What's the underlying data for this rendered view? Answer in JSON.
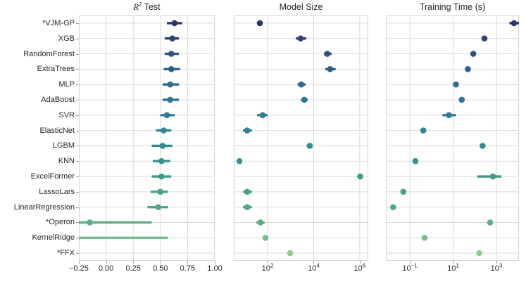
{
  "figure": {
    "background": "#ffffff",
    "grid_color": "#dadada",
    "spine_color": "#d4d4d4",
    "tick_color": "#9a9a9a",
    "text_color": "#262626"
  },
  "models": [
    {
      "label": "*VJM-GP",
      "color": "#2b3470"
    },
    {
      "label": "XGB",
      "color": "#2c427c"
    },
    {
      "label": "RandomForest",
      "color": "#2c5185"
    },
    {
      "label": "ExtraTrees",
      "color": "#2d5f8d"
    },
    {
      "label": "MLP",
      "color": "#2e6a92"
    },
    {
      "label": "AdaBoost",
      "color": "#2e7295"
    },
    {
      "label": "SVR",
      "color": "#2c7d97"
    },
    {
      "label": "ElasticNet",
      "color": "#2b8795"
    },
    {
      "label": "LGBM",
      "color": "#2c8c90"
    },
    {
      "label": "KNN",
      "color": "#33948d"
    },
    {
      "label": "ExcelFormer",
      "color": "#3c9c8b"
    },
    {
      "label": "LassoLars",
      "color": "#45a389"
    },
    {
      "label": "LinearRegression",
      "color": "#4ea988"
    },
    {
      "label": "*Operon",
      "color": "#57b087"
    },
    {
      "label": "KernelRidge",
      "color": "#73bf8b"
    },
    {
      "label": "*FFX",
      "color": "#90cb8d"
    }
  ],
  "chart_data": [
    {
      "type": "scatter",
      "title": "_R_^{2} Test",
      "scale": "linear",
      "xlim": [
        -0.25,
        1.0
      ],
      "grid": true,
      "ticks": [
        {
          "v": -0.25,
          "label": "−0.25"
        },
        {
          "v": 0.0,
          "label": "0.00"
        },
        {
          "v": 0.25,
          "label": "0.25"
        },
        {
          "v": 0.5,
          "label": "0.50"
        },
        {
          "v": 0.75,
          "label": "0.75"
        },
        {
          "v": 1.0,
          "label": "1.00"
        }
      ],
      "points": [
        {
          "v": 0.63,
          "lo": 0.56,
          "hi": 0.7
        },
        {
          "v": 0.61,
          "lo": 0.54,
          "hi": 0.67
        },
        {
          "v": 0.6,
          "lo": 0.54,
          "hi": 0.67
        },
        {
          "v": 0.6,
          "lo": 0.53,
          "hi": 0.68
        },
        {
          "v": 0.59,
          "lo": 0.52,
          "hi": 0.67
        },
        {
          "v": 0.59,
          "lo": 0.52,
          "hi": 0.67
        },
        {
          "v": 0.56,
          "lo": 0.5,
          "hi": 0.63
        },
        {
          "v": 0.53,
          "lo": 0.46,
          "hi": 0.6
        },
        {
          "v": 0.52,
          "lo": 0.42,
          "hi": 0.61
        },
        {
          "v": 0.51,
          "lo": 0.43,
          "hi": 0.59
        },
        {
          "v": 0.51,
          "lo": 0.42,
          "hi": 0.6
        },
        {
          "v": 0.5,
          "lo": 0.41,
          "hi": 0.57
        },
        {
          "v": 0.48,
          "lo": 0.38,
          "hi": 0.57
        },
        {
          "v": -0.15,
          "lo": -0.4,
          "hi": 0.42
        },
        {
          "v": null,
          "lo": -0.4,
          "hi": 0.57
        },
        {
          "v": null,
          "lo": null,
          "hi": null
        }
      ]
    },
    {
      "type": "scatter",
      "title": "Model Size",
      "scale": "log",
      "xlim": [
        3.4,
        2350000
      ],
      "grid": true,
      "ticks": [
        {
          "v": 100,
          "label": "10^{2}"
        },
        {
          "v": 10000,
          "label": "10^{4}"
        },
        {
          "v": 1000000,
          "label": "10^{6}"
        }
      ],
      "points": [
        {
          "v": 46,
          "lo": null,
          "hi": null
        },
        {
          "v": 2700,
          "lo": 1700,
          "hi": 4800
        },
        {
          "v": 39000,
          "lo": 28000,
          "hi": 60000
        },
        {
          "v": 52000,
          "lo": 32000,
          "hi": 90000
        },
        {
          "v": 2900,
          "lo": 2000,
          "hi": 4500
        },
        {
          "v": 3900,
          "lo": 2800,
          "hi": 5500
        },
        {
          "v": 61,
          "lo": 35,
          "hi": 100
        },
        {
          "v": 13,
          "lo": 8.5,
          "hi": 21
        },
        {
          "v": 6800,
          "lo": 5000,
          "hi": 9000
        },
        {
          "v": 6,
          "lo": null,
          "hi": null
        },
        {
          "v": 1050000,
          "lo": null,
          "hi": null
        },
        {
          "v": 13,
          "lo": 8.5,
          "hi": 21
        },
        {
          "v": 13,
          "lo": 8.5,
          "hi": 21
        },
        {
          "v": 49,
          "lo": 32,
          "hi": 75
        },
        {
          "v": 81,
          "lo": null,
          "hi": null
        },
        {
          "v": 950,
          "lo": null,
          "hi": null
        }
      ]
    },
    {
      "type": "scatter",
      "title": "Training Time (s)",
      "scale": "log",
      "xlim": [
        0.0078,
        11000
      ],
      "grid": true,
      "ticks": [
        {
          "v": 0.1,
          "label": "10^{−1}"
        },
        {
          "v": 10,
          "label": "10^{1}"
        },
        {
          "v": 1000,
          "label": "10^{3}"
        }
      ],
      "points": [
        {
          "v": 6500,
          "lo": 4000,
          "hi": 11000
        },
        {
          "v": 280,
          "lo": null,
          "hi": null
        },
        {
          "v": 85,
          "lo": null,
          "hi": null
        },
        {
          "v": 48,
          "lo": null,
          "hi": null
        },
        {
          "v": 13.5,
          "lo": null,
          "hi": null
        },
        {
          "v": 25,
          "lo": null,
          "hi": null
        },
        {
          "v": 6.4,
          "lo": 3.2,
          "hi": 13.5
        },
        {
          "v": 0.42,
          "lo": null,
          "hi": null
        },
        {
          "v": 230,
          "lo": null,
          "hi": null
        },
        {
          "v": 0.18,
          "lo": null,
          "hi": null
        },
        {
          "v": 690,
          "lo": 130,
          "hi": 1700
        },
        {
          "v": 0.05,
          "lo": null,
          "hi": null
        },
        {
          "v": 0.017,
          "lo": null,
          "hi": null
        },
        {
          "v": 510,
          "lo": null,
          "hi": null
        },
        {
          "v": 0.48,
          "lo": null,
          "hi": null
        },
        {
          "v": 160,
          "lo": null,
          "hi": null
        }
      ]
    }
  ]
}
